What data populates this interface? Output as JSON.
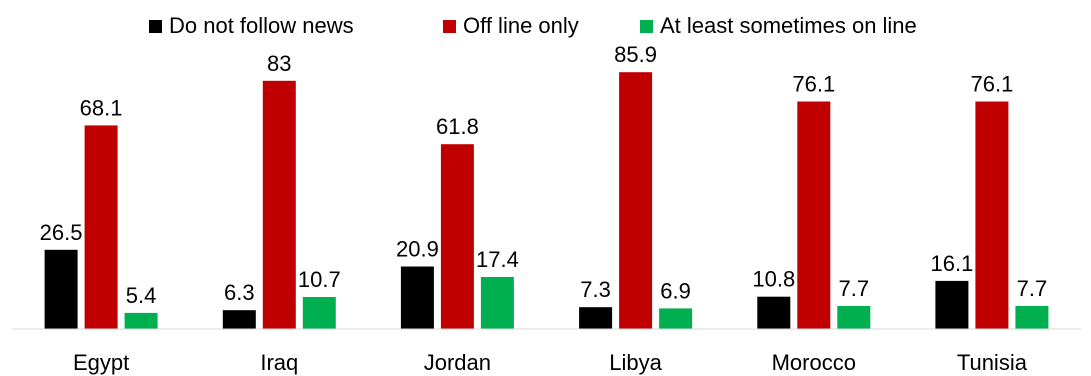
{
  "chart_data": {
    "type": "bar",
    "title": "",
    "xlabel": "",
    "ylabel": "",
    "categories": [
      "Egypt",
      "Iraq",
      "Jordan",
      "Libya",
      "Morocco",
      "Tunisia"
    ],
    "series": [
      {
        "name": "Do not follow news",
        "color": "#000000",
        "values": [
          26.5,
          6.3,
          20.9,
          7.3,
          10.8,
          16.1
        ]
      },
      {
        "name": "Off line only",
        "color": "#C00000",
        "values": [
          68.1,
          83,
          61.8,
          85.9,
          76.1,
          76.1
        ]
      },
      {
        "name": "At least sometimes on line",
        "color": "#00B050",
        "values": [
          5.4,
          10.7,
          17.4,
          6.9,
          7.7,
          7.7
        ]
      }
    ],
    "ylim": [
      0,
      100
    ],
    "grid": false,
    "legend_position": "top-center",
    "data_labels": true
  }
}
